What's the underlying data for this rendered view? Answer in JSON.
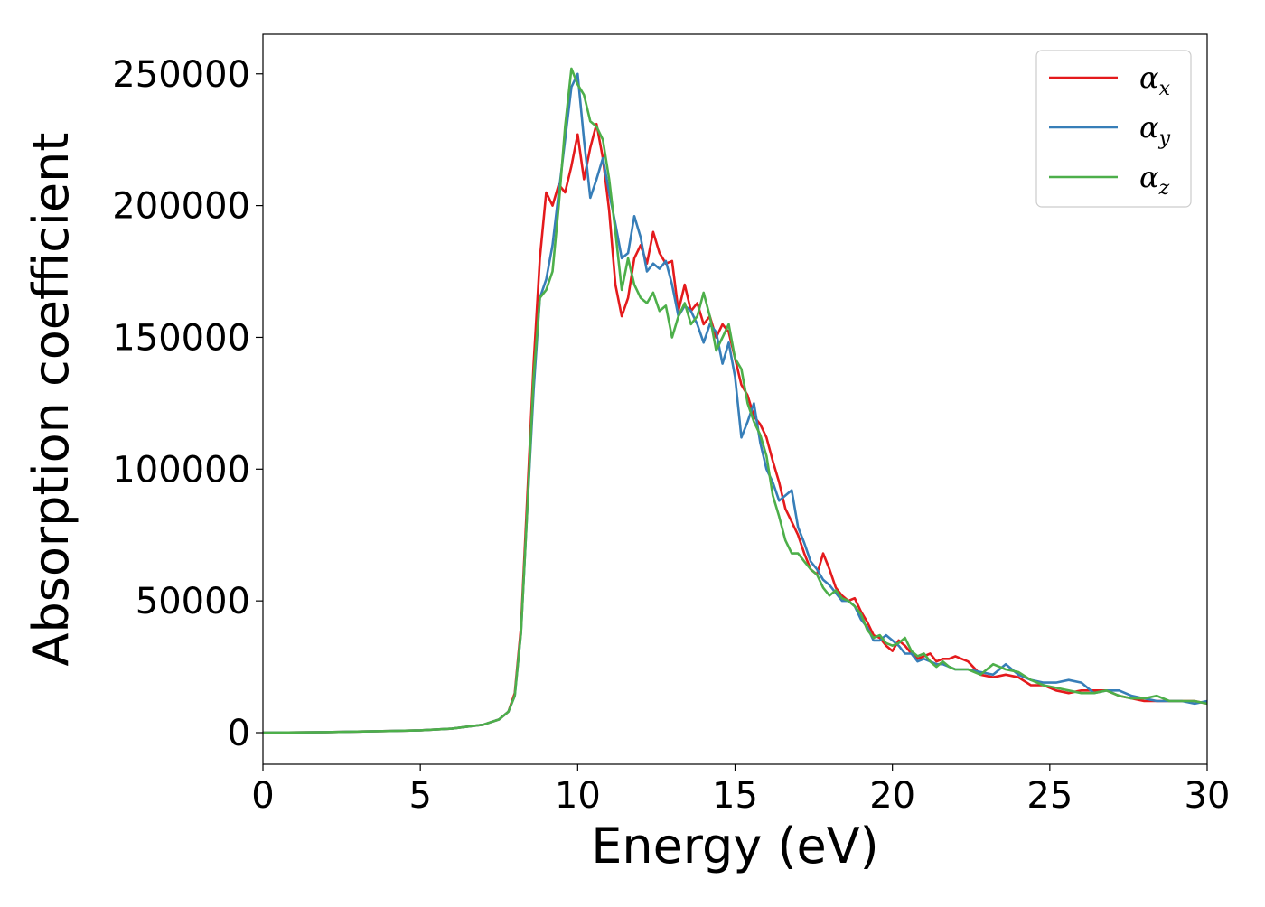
{
  "chart_data": {
    "type": "line",
    "xlabel": "Energy (eV)",
    "ylabel": "Absorption coefficient",
    "xlim": [
      0,
      30
    ],
    "ylim": [
      -12000,
      265000
    ],
    "xticks": [
      0,
      5,
      10,
      15,
      20,
      25,
      30
    ],
    "yticks": [
      0,
      50000,
      100000,
      150000,
      200000,
      250000
    ],
    "xtick_labels": [
      "0",
      "5",
      "10",
      "15",
      "20",
      "25",
      "30"
    ],
    "ytick_labels": [
      "0",
      "50000",
      "100000",
      "150000",
      "200000",
      "250000"
    ],
    "grid": false,
    "legend_position": "top-right",
    "series": [
      {
        "name": "αx",
        "label_main": "α",
        "label_sub": "x",
        "color": "#e41a1c",
        "x": [
          0,
          2,
          4,
          5,
          6,
          7,
          7.5,
          7.8,
          8.0,
          8.2,
          8.4,
          8.6,
          8.8,
          9.0,
          9.2,
          9.4,
          9.6,
          9.8,
          10.0,
          10.2,
          10.4,
          10.6,
          10.8,
          11.0,
          11.2,
          11.4,
          11.6,
          11.8,
          12.0,
          12.2,
          12.4,
          12.6,
          12.8,
          13.0,
          13.2,
          13.4,
          13.6,
          13.8,
          14.0,
          14.2,
          14.4,
          14.6,
          14.8,
          15.0,
          15.2,
          15.4,
          15.6,
          15.8,
          16.0,
          16.2,
          16.4,
          16.6,
          16.8,
          17.0,
          17.2,
          17.4,
          17.6,
          17.8,
          18.0,
          18.2,
          18.4,
          18.6,
          18.8,
          19.0,
          19.2,
          19.4,
          19.6,
          19.8,
          20.0,
          20.2,
          20.4,
          20.6,
          20.8,
          21.0,
          21.2,
          21.4,
          21.6,
          21.8,
          22.0,
          22.4,
          22.8,
          23.2,
          23.6,
          24.0,
          24.4,
          24.8,
          25.2,
          25.6,
          26.0,
          26.4,
          26.8,
          27.2,
          27.6,
          28.0,
          28.4,
          28.8,
          29.2,
          29.6,
          30.0
        ],
        "y": [
          0,
          200,
          600,
          900,
          1500,
          3000,
          5000,
          8000,
          15000,
          40000,
          90000,
          140000,
          180000,
          205000,
          200000,
          208000,
          205000,
          215000,
          227000,
          210000,
          222000,
          231000,
          218000,
          198000,
          170000,
          158000,
          165000,
          180000,
          185000,
          178000,
          190000,
          182000,
          178000,
          179000,
          160000,
          170000,
          160000,
          163000,
          155000,
          158000,
          150000,
          155000,
          152000,
          142000,
          132000,
          128000,
          120000,
          117000,
          112000,
          103000,
          95000,
          85000,
          80000,
          75000,
          68000,
          62000,
          60000,
          68000,
          62000,
          55000,
          52000,
          50000,
          51000,
          46000,
          42000,
          37000,
          36000,
          33000,
          31000,
          35000,
          33000,
          30000,
          28000,
          29000,
          30000,
          27000,
          28000,
          28000,
          29000,
          27000,
          22000,
          21000,
          22000,
          21000,
          18000,
          18000,
          16000,
          15000,
          16000,
          16000,
          16000,
          14000,
          13000,
          12000,
          12000,
          12000,
          12000,
          12000,
          11000
        ]
      },
      {
        "name": "αy",
        "label_main": "α",
        "label_sub": "y",
        "color": "#377eb8",
        "x": [
          0,
          2,
          4,
          5,
          6,
          7,
          7.5,
          7.8,
          8.0,
          8.2,
          8.4,
          8.6,
          8.8,
          9.0,
          9.2,
          9.4,
          9.6,
          9.8,
          10.0,
          10.2,
          10.4,
          10.6,
          10.8,
          11.0,
          11.2,
          11.4,
          11.6,
          11.8,
          12.0,
          12.2,
          12.4,
          12.6,
          12.8,
          13.0,
          13.2,
          13.4,
          13.6,
          13.8,
          14.0,
          14.2,
          14.4,
          14.6,
          14.8,
          15.0,
          15.2,
          15.4,
          15.6,
          15.8,
          16.0,
          16.2,
          16.4,
          16.6,
          16.8,
          17.0,
          17.2,
          17.4,
          17.6,
          17.8,
          18.0,
          18.2,
          18.4,
          18.6,
          18.8,
          19.0,
          19.2,
          19.4,
          19.6,
          19.8,
          20.0,
          20.2,
          20.4,
          20.6,
          20.8,
          21.0,
          21.2,
          21.4,
          21.6,
          21.8,
          22.0,
          22.4,
          22.8,
          23.2,
          23.6,
          24.0,
          24.4,
          24.8,
          25.2,
          25.6,
          26.0,
          26.4,
          26.8,
          27.2,
          27.6,
          28.0,
          28.4,
          28.8,
          29.2,
          29.6,
          30.0
        ],
        "y": [
          0,
          200,
          600,
          900,
          1500,
          3000,
          5000,
          8000,
          14000,
          38000,
          85000,
          130000,
          165000,
          172000,
          185000,
          205000,
          225000,
          245000,
          250000,
          225000,
          203000,
          210000,
          218000,
          205000,
          193000,
          180000,
          182000,
          196000,
          188000,
          175000,
          178000,
          176000,
          179000,
          170000,
          158000,
          162000,
          160000,
          155000,
          148000,
          155000,
          152000,
          140000,
          148000,
          135000,
          112000,
          118000,
          125000,
          110000,
          100000,
          95000,
          88000,
          90000,
          92000,
          78000,
          72000,
          65000,
          62000,
          58000,
          56000,
          53000,
          50000,
          50000,
          48000,
          43000,
          40000,
          35000,
          35000,
          37000,
          35000,
          33000,
          30000,
          30000,
          27000,
          28000,
          27000,
          26000,
          26000,
          25000,
          24000,
          24000,
          23000,
          22000,
          26000,
          22000,
          20000,
          19000,
          19000,
          20000,
          19000,
          15000,
          16000,
          16000,
          14000,
          13000,
          12000,
          12000,
          12000,
          11000,
          12000
        ]
      },
      {
        "name": "αz",
        "label_main": "α",
        "label_sub": "z",
        "color": "#4daf4a",
        "x": [
          0,
          2,
          4,
          5,
          6,
          7,
          7.5,
          7.8,
          8.0,
          8.2,
          8.4,
          8.6,
          8.8,
          9.0,
          9.2,
          9.4,
          9.6,
          9.8,
          10.0,
          10.2,
          10.4,
          10.6,
          10.8,
          11.0,
          11.2,
          11.4,
          11.6,
          11.8,
          12.0,
          12.2,
          12.4,
          12.6,
          12.8,
          13.0,
          13.2,
          13.4,
          13.6,
          13.8,
          14.0,
          14.2,
          14.4,
          14.6,
          14.8,
          15.0,
          15.2,
          15.4,
          15.6,
          15.8,
          16.0,
          16.2,
          16.4,
          16.6,
          16.8,
          17.0,
          17.2,
          17.4,
          17.6,
          17.8,
          18.0,
          18.2,
          18.4,
          18.6,
          18.8,
          19.0,
          19.2,
          19.4,
          19.6,
          19.8,
          20.0,
          20.2,
          20.4,
          20.6,
          20.8,
          21.0,
          21.2,
          21.4,
          21.6,
          21.8,
          22.0,
          22.4,
          22.8,
          23.2,
          23.6,
          24.0,
          24.4,
          24.8,
          25.2,
          25.6,
          26.0,
          26.4,
          26.8,
          27.2,
          27.6,
          28.0,
          28.4,
          28.8,
          29.2,
          29.6,
          30.0
        ],
        "y": [
          0,
          200,
          600,
          900,
          1500,
          3000,
          5000,
          8000,
          14000,
          38000,
          85000,
          135000,
          165000,
          168000,
          175000,
          200000,
          230000,
          252000,
          246000,
          242000,
          232000,
          230000,
          225000,
          210000,
          190000,
          168000,
          180000,
          170000,
          165000,
          163000,
          167000,
          160000,
          162000,
          150000,
          158000,
          163000,
          155000,
          158000,
          167000,
          158000,
          145000,
          150000,
          155000,
          142000,
          138000,
          125000,
          118000,
          113000,
          105000,
          90000,
          82000,
          73000,
          68000,
          68000,
          65000,
          62000,
          60000,
          55000,
          52000,
          54000,
          51000,
          50000,
          48000,
          45000,
          39000,
          36000,
          37000,
          34000,
          33000,
          34000,
          36000,
          31000,
          29000,
          30000,
          27000,
          25000,
          27000,
          25000,
          24000,
          24000,
          22000,
          26000,
          24000,
          23000,
          20000,
          18000,
          17000,
          16000,
          15000,
          15000,
          16000,
          14000,
          13000,
          13000,
          14000,
          12000,
          12000,
          12000,
          11000
        ]
      }
    ]
  }
}
